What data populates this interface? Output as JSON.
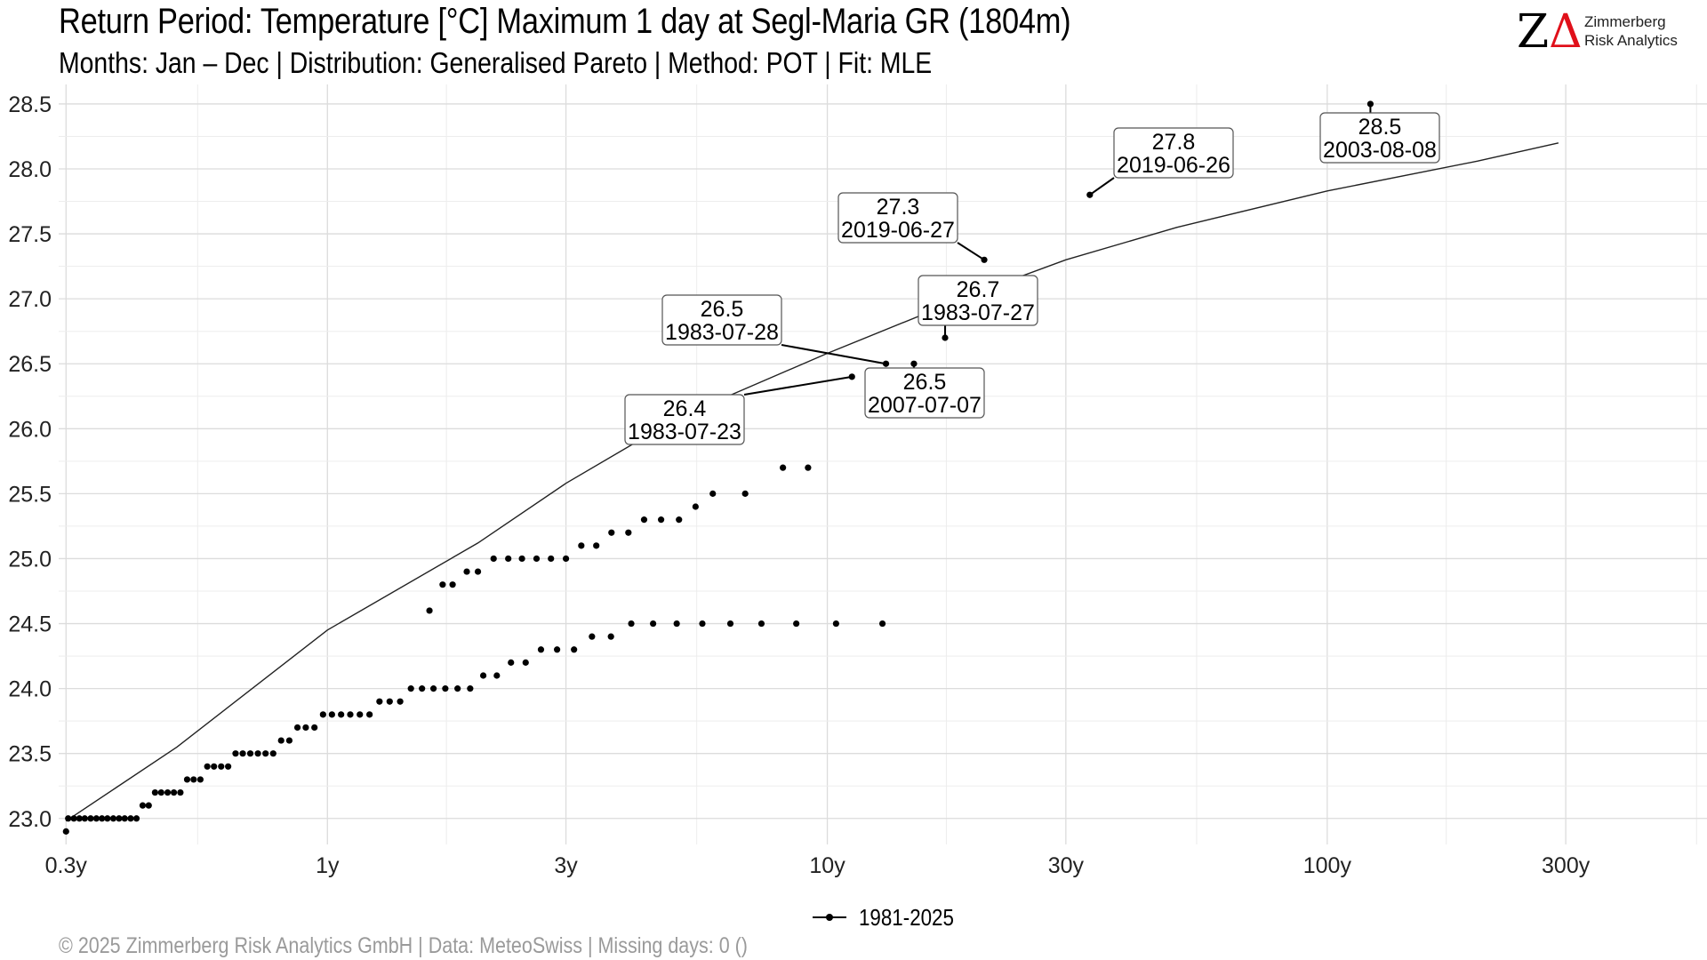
{
  "header": {
    "title": "Return Period: Temperature [°C] Maximum 1 day at Segl-Maria  GR (1804m)",
    "subtitle": "Months: Jan – Dec | Distribution: Generalised Pareto | Method: POT | Fit: MLE"
  },
  "logo": {
    "mark_z": "Z",
    "mark_a": "Δ",
    "line1": "Zimmerberg",
    "line2": "Risk Analytics"
  },
  "legend": {
    "label": "1981-2025"
  },
  "caption": "©  2025 Zimmerberg Risk Analytics GmbH | Data: MeteoSwiss | Missing days: 0 ()",
  "chart_data": {
    "type": "scatter",
    "x_scale": "log",
    "x_ticks": [
      {
        "value": 0.3,
        "label": "0.3y"
      },
      {
        "value": 1,
        "label": "1y"
      },
      {
        "value": 3,
        "label": "3y"
      },
      {
        "value": 10,
        "label": "10y"
      },
      {
        "value": 30,
        "label": "30y"
      },
      {
        "value": 100,
        "label": "100y"
      },
      {
        "value": 300,
        "label": "300y"
      }
    ],
    "y_ticks": [
      23.0,
      23.5,
      24.0,
      24.5,
      25.0,
      25.5,
      26.0,
      26.5,
      27.0,
      27.5,
      28.0,
      28.5
    ],
    "y_range": [
      22.8,
      28.65
    ],
    "x_range": [
      0.29,
      575
    ],
    "grid": true,
    "legend_position": "bottom",
    "series": [
      {
        "name": "1981-2025",
        "type": "scatter",
        "points": [
          [
            0.3,
            22.9
          ],
          [
            0.303,
            23.0
          ],
          [
            0.311,
            23.0
          ],
          [
            0.319,
            23.0
          ],
          [
            0.327,
            23.0
          ],
          [
            0.336,
            23.0
          ],
          [
            0.345,
            23.0
          ],
          [
            0.354,
            23.0
          ],
          [
            0.363,
            23.0
          ],
          [
            0.373,
            23.0
          ],
          [
            0.383,
            23.0
          ],
          [
            0.393,
            23.0
          ],
          [
            0.404,
            23.0
          ],
          [
            0.415,
            23.0
          ],
          [
            0.427,
            23.1
          ],
          [
            0.439,
            23.1
          ],
          [
            0.452,
            23.2
          ],
          [
            0.465,
            23.2
          ],
          [
            0.479,
            23.2
          ],
          [
            0.493,
            23.2
          ],
          [
            0.508,
            23.2
          ],
          [
            0.524,
            23.3
          ],
          [
            0.54,
            23.3
          ],
          [
            0.557,
            23.3
          ],
          [
            0.575,
            23.4
          ],
          [
            0.593,
            23.4
          ],
          [
            0.613,
            23.4
          ],
          [
            0.633,
            23.4
          ],
          [
            0.655,
            23.5
          ],
          [
            0.677,
            23.5
          ],
          [
            0.701,
            23.5
          ],
          [
            0.726,
            23.5
          ],
          [
            0.752,
            23.5
          ],
          [
            0.779,
            23.5
          ],
          [
            0.808,
            23.6
          ],
          [
            0.839,
            23.6
          ],
          [
            0.871,
            23.7
          ],
          [
            0.905,
            23.7
          ],
          [
            0.942,
            23.7
          ],
          [
            0.98,
            23.8
          ],
          [
            1.021,
            23.8
          ],
          [
            1.065,
            23.8
          ],
          [
            1.111,
            23.8
          ],
          [
            1.161,
            23.8
          ],
          [
            1.214,
            23.8
          ],
          [
            1.271,
            23.9
          ],
          [
            1.332,
            23.9
          ],
          [
            1.398,
            23.9
          ],
          [
            1.469,
            24.0
          ],
          [
            1.546,
            24.0
          ],
          [
            1.63,
            24.0
          ],
          [
            1.721,
            24.0
          ],
          [
            1.821,
            24.0
          ],
          [
            1.93,
            24.0
          ],
          [
            2.05,
            24.1
          ],
          [
            2.182,
            24.1
          ],
          [
            2.329,
            24.2
          ],
          [
            2.492,
            24.2
          ],
          [
            2.674,
            24.3
          ],
          [
            2.88,
            24.3
          ],
          [
            3.114,
            24.3
          ],
          [
            3.382,
            24.4
          ],
          [
            3.691,
            24.4
          ],
          [
            4.053,
            24.5
          ],
          [
            4.482,
            24.5
          ],
          [
            4.997,
            24.5
          ],
          [
            5.623,
            24.5
          ],
          [
            6.398,
            24.5
          ],
          [
            7.382,
            24.5
          ],
          [
            8.667,
            24.5
          ],
          [
            10.41,
            24.5
          ],
          [
            12.89,
            24.5
          ],
          [
            1.6,
            24.6
          ],
          [
            1.7,
            24.8
          ],
          [
            1.78,
            24.8
          ],
          [
            1.9,
            24.9
          ],
          [
            2.0,
            24.9
          ],
          [
            2.15,
            25.0
          ],
          [
            2.3,
            25.0
          ],
          [
            2.45,
            25.0
          ],
          [
            2.62,
            25.0
          ],
          [
            2.8,
            25.0
          ],
          [
            3.0,
            25.0
          ],
          [
            3.22,
            25.1
          ],
          [
            3.45,
            25.1
          ],
          [
            3.7,
            25.2
          ],
          [
            4.0,
            25.2
          ],
          [
            4.3,
            25.3
          ],
          [
            4.65,
            25.3
          ],
          [
            5.05,
            25.3
          ],
          [
            5.45,
            25.4
          ],
          [
            5.9,
            25.5
          ],
          [
            6.85,
            25.5
          ],
          [
            8.15,
            25.7
          ],
          [
            9.15,
            25.7
          ],
          [
            11.2,
            26.4
          ],
          [
            13.1,
            26.5
          ],
          [
            14.9,
            26.5
          ],
          [
            17.2,
            26.7
          ],
          [
            20.6,
            27.3
          ],
          [
            33.5,
            27.8
          ],
          [
            122.0,
            28.5
          ]
        ]
      },
      {
        "name": "",
        "type": "line",
        "points": [
          [
            0.3,
            22.98
          ],
          [
            0.5,
            23.55
          ],
          [
            1.0,
            24.45
          ],
          [
            2.0,
            25.12
          ],
          [
            3.0,
            25.58
          ],
          [
            5.0,
            26.08
          ],
          [
            10.0,
            26.58
          ],
          [
            20.0,
            27.05
          ],
          [
            30.0,
            27.3
          ],
          [
            50.0,
            27.55
          ],
          [
            100.0,
            27.83
          ],
          [
            200.0,
            28.06
          ],
          [
            290.0,
            28.2
          ]
        ]
      }
    ],
    "annotations": [
      {
        "value": "26.4",
        "date": "1983-07-23",
        "point": [
          11.2,
          26.4
        ]
      },
      {
        "value": "26.5",
        "date": "1983-07-28",
        "point": [
          13.1,
          26.5
        ]
      },
      {
        "value": "26.5",
        "date": "2007-07-07",
        "point": [
          14.9,
          26.5
        ]
      },
      {
        "value": "26.7",
        "date": "1983-07-27",
        "point": [
          17.2,
          26.7
        ]
      },
      {
        "value": "27.3",
        "date": "2019-06-27",
        "point": [
          20.6,
          27.3
        ]
      },
      {
        "value": "27.8",
        "date": "2019-06-26",
        "point": [
          33.5,
          27.8
        ]
      },
      {
        "value": "28.5",
        "date": "2003-08-08",
        "point": [
          122.0,
          28.5
        ]
      }
    ]
  }
}
